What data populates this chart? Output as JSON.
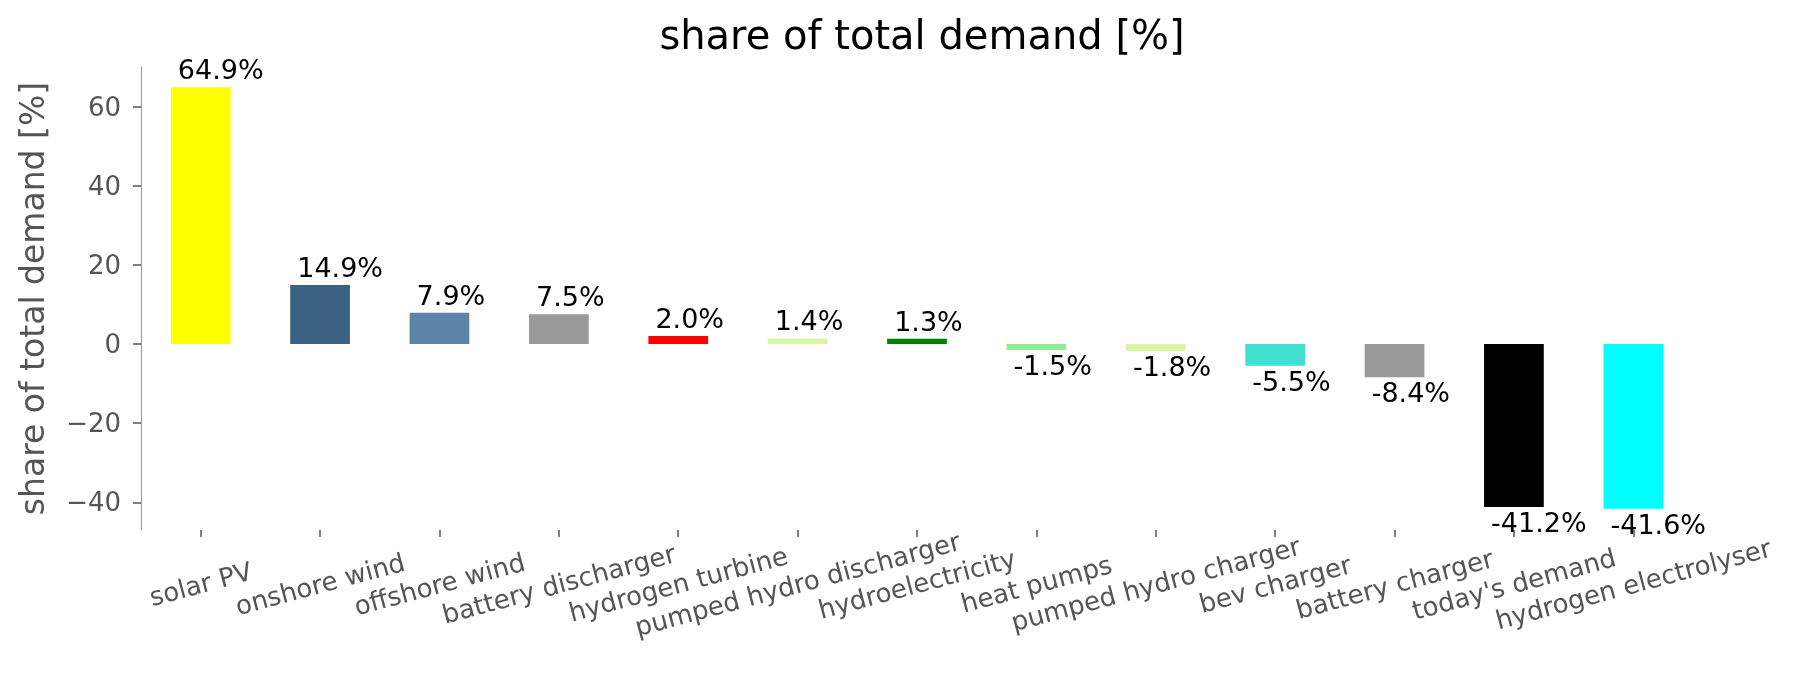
{
  "chart_data": {
    "type": "bar",
    "title": "share of total demand [%]",
    "ylabel": "share of total demand [%]",
    "categories": [
      "solar PV",
      "onshore wind",
      "offshore wind",
      "battery discharger",
      "hydrogen turbine",
      "pumped hydro discharger",
      "hydroelectricity",
      "heat pumps",
      "pumped hydro charger",
      "bev charger",
      "battery charger",
      "today's demand",
      "hydrogen electrolyser"
    ],
    "values": [
      64.9,
      14.9,
      7.9,
      7.5,
      2.0,
      1.4,
      1.3,
      -1.5,
      -1.8,
      -5.5,
      -8.4,
      -41.2,
      -41.6
    ],
    "colors": [
      "#ffff00",
      "#3b6182",
      "#5b84a6",
      "#999999",
      "#ff0000",
      "#d9f5a6",
      "#008000",
      "#90ee90",
      "#d9f5a6",
      "#40e0d0",
      "#999999",
      "#000000",
      "#00ffff"
    ],
    "value_labels": [
      "64.9%",
      "14.9%",
      "7.9%",
      "7.5%",
      "2.0%",
      "1.4%",
      "1.3%",
      "-1.5%",
      "-1.8%",
      "-5.5%",
      "-8.4%",
      "-41.2%",
      "-41.6%"
    ],
    "ylim": [
      -47,
      70
    ],
    "yticks": [
      {
        "value": -40,
        "label": "−40"
      },
      {
        "value": -20,
        "label": "−20"
      },
      0,
      20,
      40,
      60
    ],
    "grid": false
  }
}
